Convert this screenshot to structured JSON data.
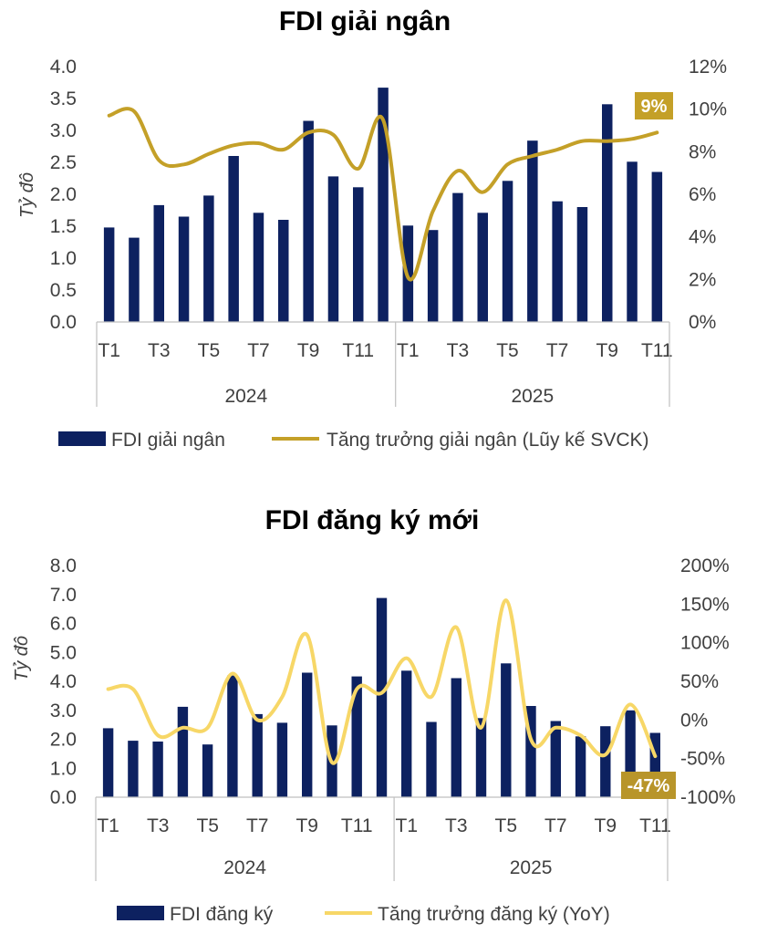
{
  "colors": {
    "bar": "#0d2160",
    "line1": "#c4a028",
    "line2": "#f7d767",
    "badge1": "#c4a028",
    "badge2": "#b8952a",
    "axis": "#bfbfbf"
  },
  "chart_data": [
    {
      "type": "bar+line",
      "title": "FDI giải ngân",
      "ylabel": "Tỷ đô",
      "ylim": [
        0,
        4
      ],
      "yticks": [
        "0.0",
        "0.5",
        "1.0",
        "1.5",
        "2.0",
        "2.5",
        "3.0",
        "3.5",
        "4.0"
      ],
      "y2lim": [
        0,
        12
      ],
      "y2ticks": [
        "0%",
        "2%",
        "4%",
        "6%",
        "8%",
        "10%",
        "12%"
      ],
      "x_tick_labels": [
        "T1",
        "",
        "T3",
        "",
        "T5",
        "",
        "T7",
        "",
        "T9",
        "",
        "T11",
        "",
        "T1",
        "",
        "T3",
        "",
        "T5",
        "",
        "T7",
        "",
        "T9",
        "",
        "T11"
      ],
      "years": [
        {
          "label": "2024",
          "start": 0,
          "end": 11
        },
        {
          "label": "2025",
          "start": 12,
          "end": 22
        }
      ],
      "series": [
        {
          "name": "FDI giải ngân",
          "type": "bar",
          "axis": "left",
          "values": [
            1.48,
            1.32,
            1.83,
            1.65,
            1.98,
            2.6,
            1.71,
            1.6,
            3.15,
            2.28,
            2.11,
            3.67,
            1.51,
            1.44,
            2.02,
            1.71,
            2.21,
            2.84,
            1.89,
            1.8,
            3.41,
            2.51,
            2.35
          ]
        },
        {
          "name": "Tăng trưởng giải ngân (Lũy kế SVCK)",
          "type": "line",
          "axis": "right",
          "values": [
            9.7,
            9.9,
            7.6,
            7.4,
            7.9,
            8.3,
            8.4,
            8.1,
            8.9,
            8.8,
            7.2,
            9.5,
            2.1,
            5.2,
            7.1,
            6.1,
            7.4,
            7.8,
            8.1,
            8.5,
            8.5,
            8.6,
            8.9
          ]
        }
      ],
      "annotation": "9%"
    },
    {
      "type": "bar+line",
      "title": "FDI đăng ký mới",
      "ylabel": "Tỷ đô",
      "ylim": [
        0,
        8
      ],
      "yticks": [
        "0.0",
        "1.0",
        "2.0",
        "3.0",
        "4.0",
        "5.0",
        "6.0",
        "7.0",
        "8.0"
      ],
      "y2lim": [
        -100,
        200
      ],
      "y2ticks": [
        "-100%",
        "-50%",
        "0%",
        "50%",
        "100%",
        "150%",
        "200%"
      ],
      "x_tick_labels": [
        "T1",
        "",
        "T3",
        "",
        "T5",
        "",
        "T7",
        "",
        "T9",
        "",
        "T11",
        "",
        "T1",
        "",
        "T3",
        "",
        "T5",
        "",
        "T7",
        "",
        "T9",
        "",
        "T11"
      ],
      "years": [
        {
          "label": "2024",
          "start": 0,
          "end": 11
        },
        {
          "label": "2025",
          "start": 12,
          "end": 22
        }
      ],
      "series": [
        {
          "name": "FDI đăng ký",
          "type": "bar",
          "axis": "left",
          "values": [
            2.38,
            1.95,
            1.92,
            3.12,
            1.82,
            4.2,
            2.87,
            2.57,
            4.3,
            2.48,
            4.17,
            6.88,
            4.37,
            2.6,
            4.11,
            2.73,
            4.62,
            3.15,
            2.63,
            2.1,
            2.45,
            3.0,
            2.22
          ]
        },
        {
          "name": "Tăng trưởng đăng ký (YoY)",
          "type": "line",
          "axis": "right",
          "values": [
            40,
            40,
            -20,
            -10,
            -10,
            60,
            0,
            30,
            110,
            -55,
            40,
            35,
            80,
            30,
            120,
            -10,
            155,
            -25,
            -10,
            -20,
            -45,
            20,
            -47
          ]
        }
      ],
      "annotation": "-47%"
    }
  ]
}
